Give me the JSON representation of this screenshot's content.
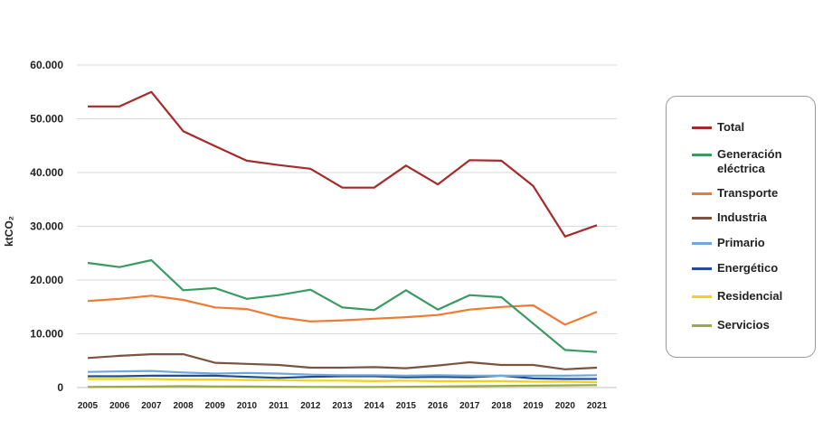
{
  "chart_data": {
    "type": "line",
    "title": "",
    "xlabel": "",
    "ylabel": "ktCO₂",
    "x": [
      "2005",
      "2006",
      "2007",
      "2008",
      "2009",
      "2010",
      "2011",
      "2012",
      "2013",
      "2014",
      "2015",
      "2016",
      "2017",
      "2018",
      "2019",
      "2020",
      "2021"
    ],
    "ylim": [
      0,
      60000
    ],
    "yticks": [
      0,
      10000,
      20000,
      30000,
      40000,
      50000,
      60000
    ],
    "ytick_labels": [
      "0",
      "10.000",
      "20.000",
      "30.000",
      "40.000",
      "50.000",
      "60.000"
    ],
    "grid": true,
    "legend_position": "right",
    "series": [
      {
        "name": "Total",
        "color": "#a52a2a",
        "values": [
          52300,
          52300,
          55000,
          47700,
          44900,
          42200,
          41400,
          40700,
          37200,
          37200,
          41300,
          37800,
          42300,
          42200,
          37500,
          28100,
          30200
        ]
      },
      {
        "name": "Generación eléctrica",
        "color": "#3a9a62",
        "values": [
          23200,
          22400,
          23700,
          18100,
          18500,
          16500,
          17200,
          18200,
          14900,
          14400,
          18100,
          14500,
          17200,
          16800,
          11900,
          7000,
          6600
        ]
      },
      {
        "name": "Transporte",
        "color": "#ee7a33",
        "values": [
          16100,
          16500,
          17100,
          16300,
          14900,
          14600,
          13100,
          12300,
          12500,
          12800,
          13100,
          13500,
          14500,
          15000,
          15300,
          11700,
          14100
        ]
      },
      {
        "name": "Industria",
        "color": "#7b5441",
        "values": [
          5500,
          5900,
          6200,
          6200,
          4600,
          4400,
          4200,
          3700,
          3700,
          3800,
          3600,
          4100,
          4700,
          4200,
          4200,
          3400,
          3700
        ]
      },
      {
        "name": "Primario",
        "color": "#74a6da",
        "values": [
          2900,
          3000,
          3100,
          2800,
          2600,
          2700,
          2600,
          2400,
          2300,
          2300,
          2200,
          2300,
          2200,
          2200,
          2200,
          2200,
          2300
        ]
      },
      {
        "name": "Energético",
        "color": "#1f4e96",
        "values": [
          2100,
          2100,
          2200,
          2200,
          2200,
          2000,
          1800,
          2000,
          2100,
          2100,
          1900,
          2000,
          1900,
          2200,
          1700,
          1600,
          1600
        ]
      },
      {
        "name": "Residencial",
        "color": "#f2d214",
        "values": [
          1600,
          1600,
          1600,
          1500,
          1500,
          1400,
          1400,
          1300,
          1300,
          1200,
          1300,
          1200,
          1200,
          1200,
          1100,
          1100,
          1000
        ]
      },
      {
        "name": "Servicios",
        "color": "#9aab3a",
        "values": [
          100,
          150,
          200,
          250,
          200,
          180,
          150,
          120,
          100,
          100,
          150,
          200,
          250,
          300,
          350,
          400,
          450
        ]
      }
    ]
  }
}
